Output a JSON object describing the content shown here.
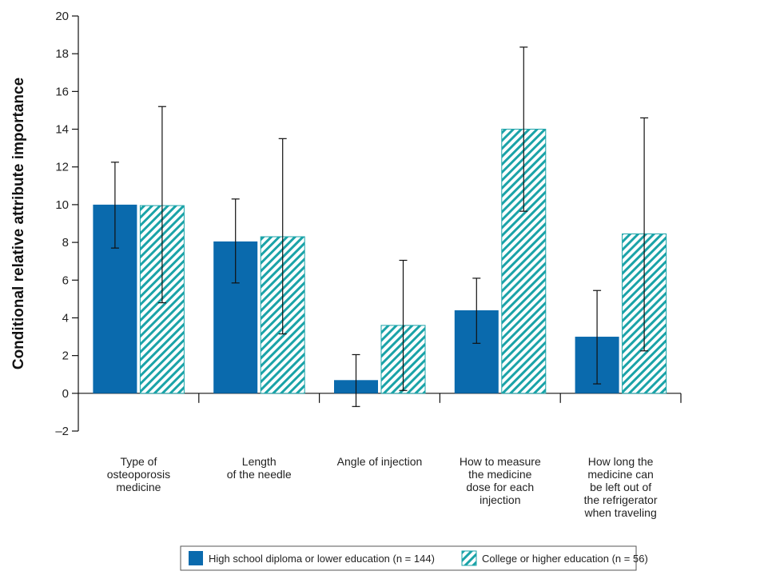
{
  "chart_data": {
    "type": "bar",
    "ylabel": "Conditional relative attribute importance",
    "xlabel": "",
    "ylim": [
      -2,
      20
    ],
    "yticks": [
      -2,
      0,
      2,
      4,
      6,
      8,
      10,
      12,
      14,
      16,
      18,
      20
    ],
    "ytick_labels": [
      "–2",
      "0",
      "2",
      "4",
      "6",
      "8",
      "10",
      "12",
      "14",
      "16",
      "18",
      "20"
    ],
    "categories": [
      [
        "Type of",
        "osteoporosis",
        "medicine"
      ],
      [
        "Length",
        "of the needle"
      ],
      [
        "Angle of injection"
      ],
      [
        "How to measure",
        "the medicine",
        "dose for each",
        "injection"
      ],
      [
        "How long the",
        "medicine can",
        "be left out of",
        "the refrigerator",
        "when traveling"
      ]
    ],
    "series": [
      {
        "name": "High school diploma or lower education (n = 144)",
        "color": "#0a6aad",
        "pattern": "solid",
        "values": [
          10.0,
          8.05,
          0.7,
          4.4,
          3.0
        ],
        "err_low": [
          7.7,
          5.85,
          -0.7,
          2.65,
          0.5
        ],
        "err_high": [
          12.25,
          10.3,
          2.05,
          6.1,
          5.45
        ]
      },
      {
        "name": "College or higher education (n = 56)",
        "color": "#1aa3a8",
        "pattern": "hatched",
        "values": [
          9.95,
          8.3,
          3.6,
          14.0,
          8.45
        ],
        "err_low": [
          4.8,
          3.15,
          0.15,
          9.65,
          2.25
        ],
        "err_high": [
          15.2,
          13.5,
          7.05,
          18.35,
          14.6
        ]
      }
    ],
    "grid": false,
    "legend_position": "bottom"
  }
}
